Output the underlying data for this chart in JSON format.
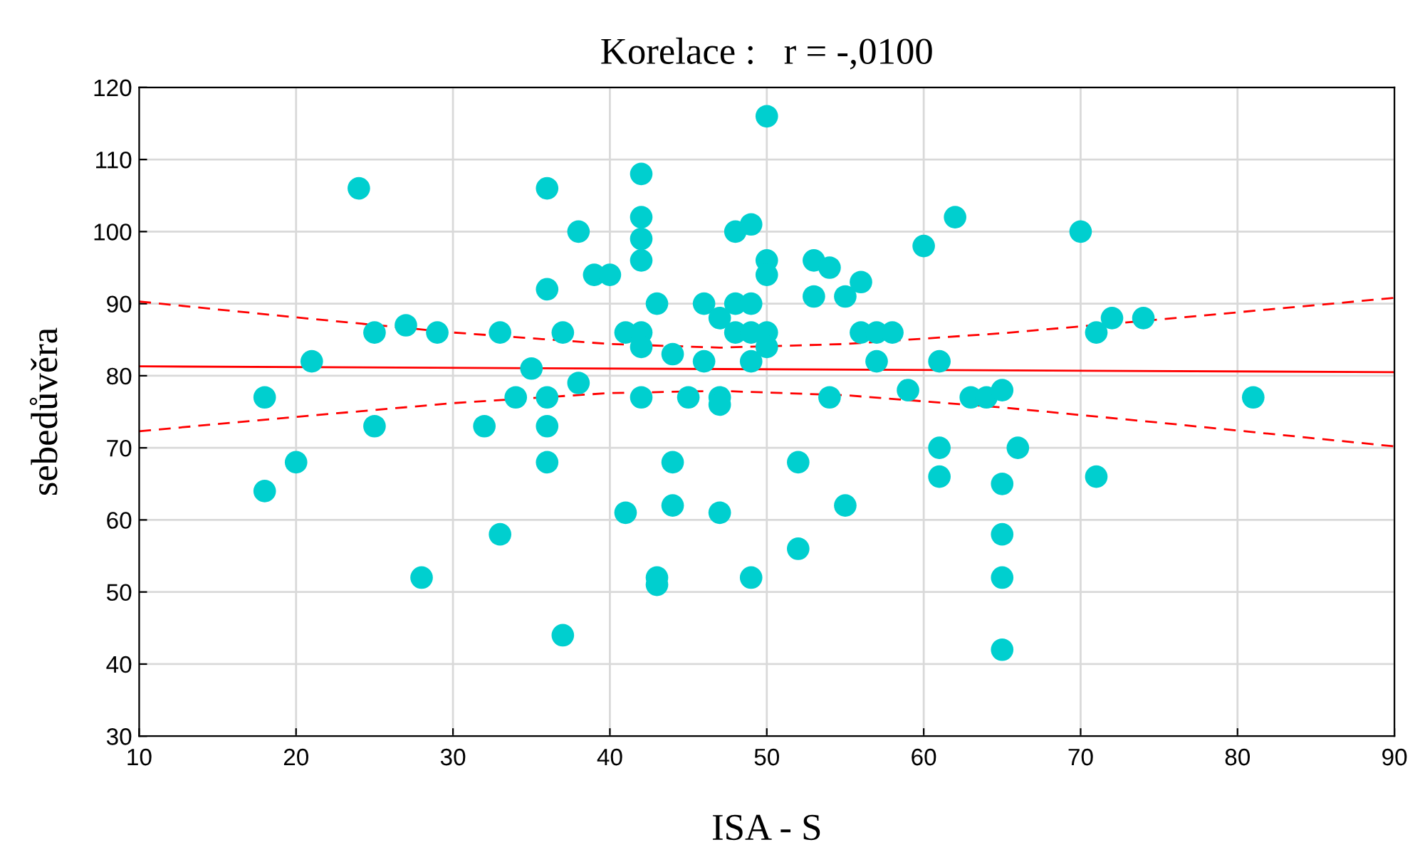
{
  "chart_data": {
    "type": "scatter",
    "title": "Korelace :   r = -,0100",
    "xlabel": "ISA - S",
    "ylabel": "sebedůvěra",
    "xlim": [
      10,
      90
    ],
    "xticks": [
      10,
      20,
      30,
      40,
      50,
      60,
      70,
      80,
      90
    ],
    "ylim": [
      30,
      120
    ],
    "yticks": [
      30,
      40,
      50,
      60,
      70,
      80,
      90,
      100,
      110,
      120
    ],
    "grid": true,
    "legend": false,
    "series": [
      {
        "color": "#00cfcf",
        "marker": "circle",
        "x": [
          18,
          18,
          20,
          21,
          24,
          25,
          25,
          27,
          28,
          29,
          32,
          33,
          33,
          34,
          35,
          36,
          36,
          36,
          36,
          36,
          37,
          37,
          38,
          38,
          39,
          40,
          41,
          41,
          42,
          42,
          42,
          42,
          42,
          42,
          42,
          43,
          43,
          43,
          44,
          44,
          44,
          45,
          46,
          46,
          47,
          47,
          47,
          47,
          48,
          48,
          48,
          49,
          49,
          49,
          49,
          49,
          50,
          50,
          50,
          50,
          50,
          52,
          52,
          53,
          53,
          54,
          54,
          55,
          55,
          56,
          56,
          57,
          57,
          58,
          59,
          60,
          61,
          61,
          61,
          62,
          63,
          64,
          65,
          65,
          65,
          65,
          65,
          66,
          70,
          71,
          71,
          72,
          74,
          81
        ],
        "values": [
          77,
          64,
          68,
          82,
          106,
          86,
          73,
          87,
          52,
          86,
          73,
          86,
          58,
          77,
          81,
          106,
          92,
          77,
          73,
          68,
          86,
          44,
          100,
          79,
          94,
          94,
          86,
          61,
          108,
          102,
          99,
          96,
          86,
          84,
          77,
          90,
          52,
          51,
          83,
          68,
          62,
          77,
          90,
          82,
          88,
          77,
          76,
          61,
          100,
          90,
          86,
          101,
          90,
          86,
          82,
          52,
          116,
          96,
          94,
          86,
          84,
          68,
          56,
          96,
          91,
          95,
          77,
          91,
          62,
          93,
          86,
          86,
          82,
          86,
          78,
          98,
          82,
          70,
          66,
          102,
          77,
          77,
          78,
          65,
          58,
          52,
          42,
          70,
          100,
          86,
          66,
          88,
          88,
          77
        ]
      },
      {
        "type": "line",
        "color": "#ff0000",
        "line_style": "solid",
        "x": [
          10,
          90
        ],
        "values": [
          81.3,
          80.5
        ]
      },
      {
        "type": "line",
        "color": "#ff0000",
        "line_style": "dashed",
        "x": [
          10,
          20,
          30,
          40,
          47,
          55,
          65,
          75,
          90
        ],
        "values": [
          90.3,
          88.1,
          86.0,
          84.4,
          83.9,
          84.4,
          85.9,
          87.8,
          90.8
        ]
      },
      {
        "type": "line",
        "color": "#ff0000",
        "line_style": "dashed",
        "x": [
          10,
          20,
          30,
          40,
          47,
          55,
          65,
          75,
          90
        ],
        "values": [
          72.3,
          74.3,
          76.2,
          77.6,
          77.9,
          77.3,
          75.6,
          73.5,
          70.2
        ]
      }
    ]
  }
}
